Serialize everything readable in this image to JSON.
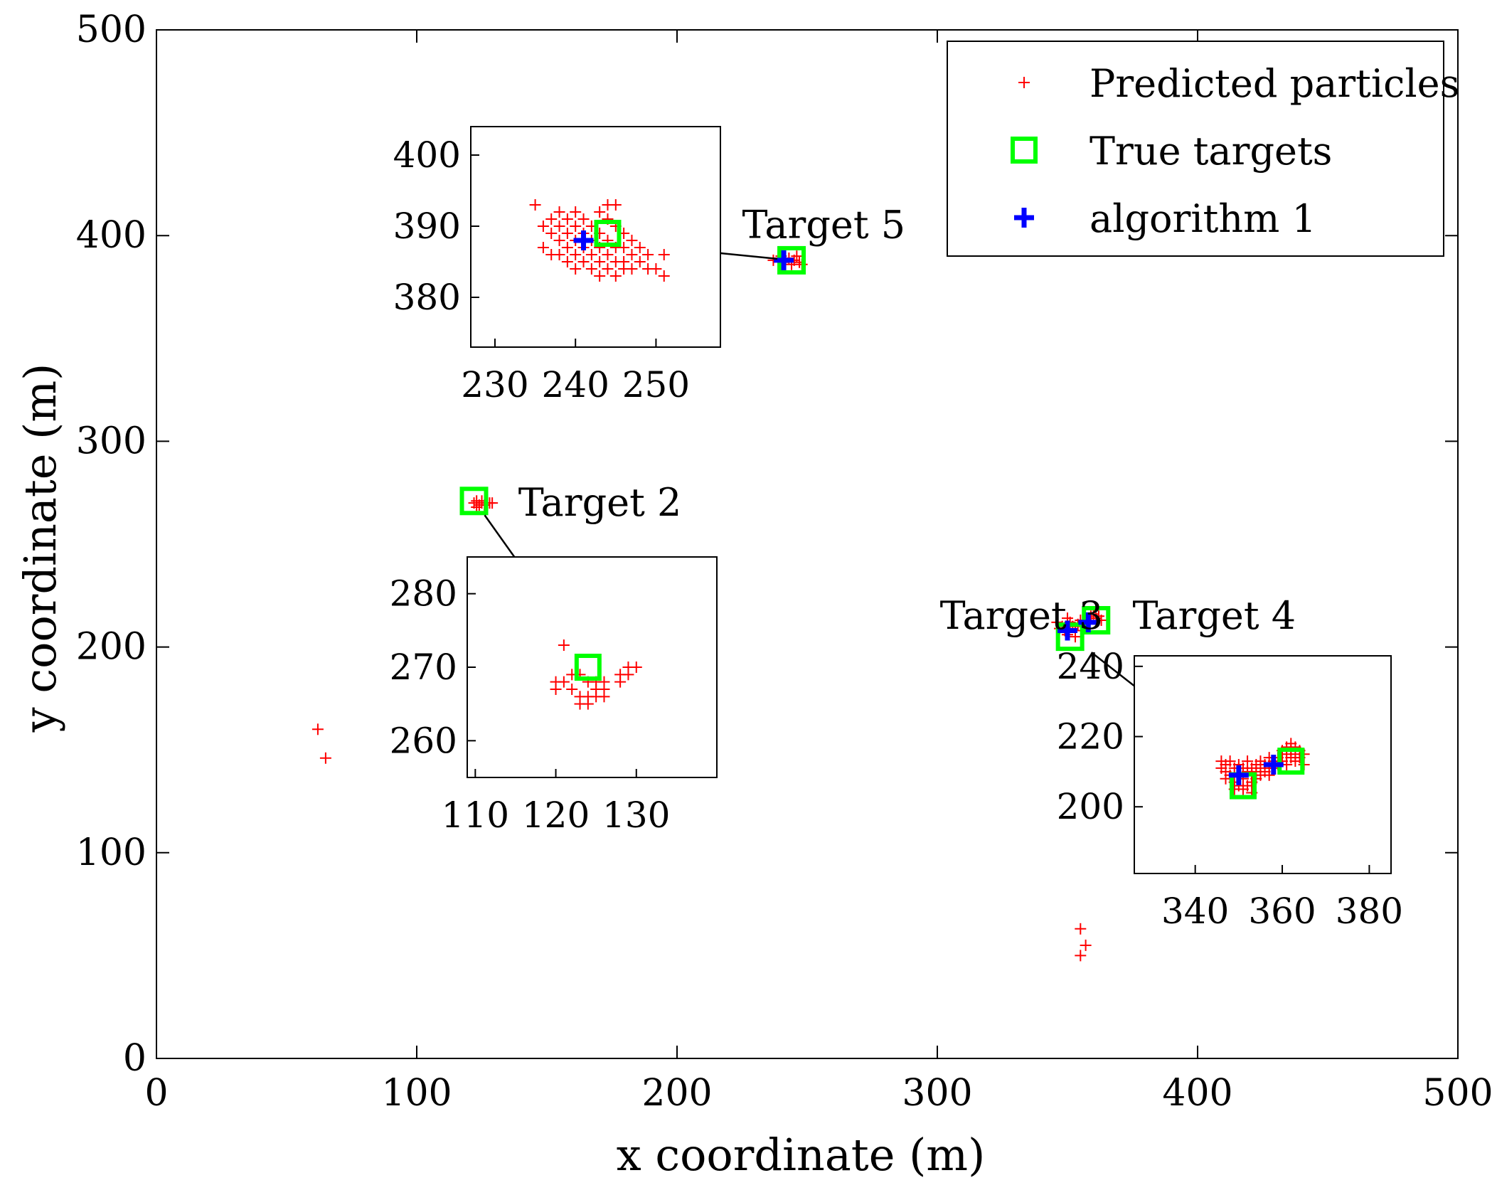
{
  "chart_data": {
    "type": "scatter",
    "title": "",
    "xlabel": "x coordinate (m)",
    "ylabel": "y coordinate (m)",
    "xlim": [
      0,
      500
    ],
    "ylim": [
      0,
      500
    ],
    "xticks": [
      0,
      100,
      200,
      300,
      400,
      500
    ],
    "yticks": [
      0,
      100,
      200,
      300,
      400,
      500
    ],
    "grid": false,
    "legend": {
      "position": "top-right",
      "entries": [
        {
          "label": "Predicted particles",
          "marker": "plus",
          "color": "#ff0000"
        },
        {
          "label": "True targets",
          "marker": "square",
          "color": "#00ff00"
        },
        {
          "label": "algorithm 1",
          "marker": "plus-bold",
          "color": "#0000ff"
        }
      ]
    },
    "series": [
      {
        "name": "Predicted particles",
        "color": "#ff0000",
        "points": [
          [
            237,
            388
          ],
          [
            239,
            389
          ],
          [
            241,
            387
          ],
          [
            243,
            389
          ],
          [
            245,
            388
          ],
          [
            247,
            387
          ],
          [
            244,
            386
          ],
          [
            240,
            390
          ],
          [
            246,
            390
          ],
          [
            248,
            386
          ],
          [
            122,
            270
          ],
          [
            123,
            271
          ],
          [
            124,
            269
          ],
          [
            125,
            270
          ],
          [
            126,
            269
          ],
          [
            127,
            270
          ],
          [
            128,
            270
          ],
          [
            123,
            268
          ],
          [
            125,
            271
          ],
          [
            129,
            270
          ],
          [
            346,
            212
          ],
          [
            348,
            210
          ],
          [
            349,
            208
          ],
          [
            350,
            206
          ],
          [
            351,
            212
          ],
          [
            352,
            210
          ],
          [
            353,
            208
          ],
          [
            354,
            211
          ],
          [
            355,
            213
          ],
          [
            356,
            210
          ],
          [
            357,
            212
          ],
          [
            358,
            214
          ],
          [
            359,
            215
          ],
          [
            360,
            216
          ],
          [
            361,
            214
          ],
          [
            362,
            215
          ],
          [
            363,
            213
          ],
          [
            350,
            214
          ],
          [
            347,
            209
          ],
          [
            353,
            205
          ],
          [
            62,
            160
          ],
          [
            65,
            146
          ],
          [
            355,
            63
          ],
          [
            357,
            55
          ],
          [
            355,
            50
          ]
        ]
      },
      {
        "name": "True targets",
        "color": "#00ff00",
        "points": [
          [
            244,
            388
          ],
          [
            122,
            271
          ],
          [
            351,
            205
          ],
          [
            361,
            213
          ]
        ]
      },
      {
        "name": "algorithm 1",
        "color": "#0000ff",
        "points": [
          [
            241,
            388
          ],
          [
            350,
            208
          ],
          [
            358,
            212
          ]
        ]
      }
    ],
    "annotations": [
      {
        "label": "Target 5",
        "x": 225,
        "y": 405
      },
      {
        "label": "Target 2",
        "x": 139,
        "y": 270
      },
      {
        "label": "Target 3",
        "x": 301,
        "y": 215
      },
      {
        "label": "Target 4",
        "x": 375,
        "y": 215
      }
    ],
    "insets": [
      {
        "name": "Target 5 zoom",
        "xlim": [
          227,
          258
        ],
        "ylim": [
          373,
          404
        ],
        "xticks": [
          230,
          240,
          250
        ],
        "yticks": [
          380,
          390,
          400
        ],
        "particles": [
          [
            235,
            393
          ],
          [
            236,
            390
          ],
          [
            236,
            387
          ],
          [
            237,
            391
          ],
          [
            237,
            389
          ],
          [
            237,
            386
          ],
          [
            238,
            392
          ],
          [
            238,
            390
          ],
          [
            238,
            388
          ],
          [
            238,
            386
          ],
          [
            239,
            391
          ],
          [
            239,
            389
          ],
          [
            239,
            387
          ],
          [
            239,
            385
          ],
          [
            240,
            392
          ],
          [
            240,
            390
          ],
          [
            240,
            388
          ],
          [
            240,
            386
          ],
          [
            240,
            384
          ],
          [
            241,
            391
          ],
          [
            241,
            389
          ],
          [
            241,
            387
          ],
          [
            241,
            385
          ],
          [
            242,
            390
          ],
          [
            242,
            388
          ],
          [
            242,
            386
          ],
          [
            242,
            384
          ],
          [
            243,
            392
          ],
          [
            243,
            389
          ],
          [
            243,
            387
          ],
          [
            243,
            385
          ],
          [
            243,
            383
          ],
          [
            244,
            391
          ],
          [
            244,
            393
          ],
          [
            244,
            388
          ],
          [
            244,
            386
          ],
          [
            244,
            384
          ],
          [
            245,
            390
          ],
          [
            245,
            393
          ],
          [
            245,
            387
          ],
          [
            245,
            385
          ],
          [
            245,
            383
          ],
          [
            246,
            389
          ],
          [
            246,
            387
          ],
          [
            246,
            385
          ],
          [
            246,
            384
          ],
          [
            247,
            388
          ],
          [
            247,
            386
          ],
          [
            247,
            384
          ],
          [
            248,
            387
          ],
          [
            248,
            385
          ],
          [
            249,
            386
          ],
          [
            249,
            384
          ],
          [
            250,
            384
          ],
          [
            251,
            386
          ],
          [
            251,
            383
          ]
        ],
        "true_targets": [
          [
            244,
            389
          ]
        ],
        "estimates": [
          [
            241,
            388
          ]
        ]
      },
      {
        "name": "Target 2 zoom",
        "xlim": [
          109,
          140
        ],
        "ylim": [
          255,
          285
        ],
        "xticks": [
          110,
          120,
          130
        ],
        "yticks": [
          260,
          270,
          280
        ],
        "particles": [
          [
            121,
            273
          ],
          [
            120,
            268
          ],
          [
            120,
            267
          ],
          [
            121,
            268
          ],
          [
            122,
            267
          ],
          [
            123,
            266
          ],
          [
            123,
            265
          ],
          [
            124,
            266
          ],
          [
            124,
            265
          ],
          [
            125,
            268
          ],
          [
            125,
            266
          ],
          [
            126,
            268
          ],
          [
            126,
            267
          ],
          [
            125,
            267
          ],
          [
            124,
            268
          ],
          [
            128,
            269
          ],
          [
            128,
            268
          ],
          [
            129,
            270
          ],
          [
            129,
            269
          ],
          [
            130,
            270
          ],
          [
            123,
            269
          ],
          [
            126,
            266
          ],
          [
            122,
            269
          ]
        ],
        "true_targets": [
          [
            124,
            270
          ]
        ],
        "estimates": []
      },
      {
        "name": "Targets 3 and 4 zoom",
        "xlim": [
          326,
          385
        ],
        "ylim": [
          181,
          243
        ],
        "xticks": [
          340,
          360,
          380
        ],
        "yticks": [
          200,
          220,
          240
        ],
        "particles": [
          [
            346,
            213
          ],
          [
            346,
            211
          ],
          [
            347,
            212
          ],
          [
            347,
            210
          ],
          [
            348,
            213
          ],
          [
            348,
            209
          ],
          [
            349,
            211
          ],
          [
            349,
            207
          ],
          [
            350,
            212
          ],
          [
            350,
            209
          ],
          [
            350,
            206
          ],
          [
            351,
            211
          ],
          [
            351,
            208
          ],
          [
            352,
            213
          ],
          [
            352,
            210
          ],
          [
            352,
            206
          ],
          [
            353,
            211
          ],
          [
            353,
            209
          ],
          [
            353,
            207
          ],
          [
            354,
            212
          ],
          [
            354,
            210
          ],
          [
            354,
            208
          ],
          [
            355,
            211
          ],
          [
            355,
            213
          ],
          [
            356,
            210
          ],
          [
            356,
            212
          ],
          [
            357,
            211
          ],
          [
            357,
            214
          ],
          [
            358,
            213
          ],
          [
            358,
            211
          ],
          [
            359,
            214
          ],
          [
            359,
            212
          ],
          [
            360,
            216
          ],
          [
            360,
            213
          ],
          [
            361,
            217
          ],
          [
            361,
            215
          ],
          [
            361,
            212
          ],
          [
            362,
            218
          ],
          [
            362,
            216
          ],
          [
            362,
            214
          ],
          [
            363,
            217
          ],
          [
            363,
            215
          ],
          [
            363,
            213
          ],
          [
            364,
            216
          ],
          [
            364,
            214
          ],
          [
            365,
            215
          ],
          [
            365,
            212
          ],
          [
            349,
            205
          ],
          [
            351,
            205
          ],
          [
            353,
            204
          ],
          [
            347,
            208
          ],
          [
            355,
            209
          ],
          [
            357,
            209
          ]
        ],
        "true_targets": [
          [
            351,
            206
          ],
          [
            362,
            213
          ]
        ],
        "estimates": [
          [
            350,
            209
          ],
          [
            358,
            212
          ]
        ]
      }
    ]
  }
}
